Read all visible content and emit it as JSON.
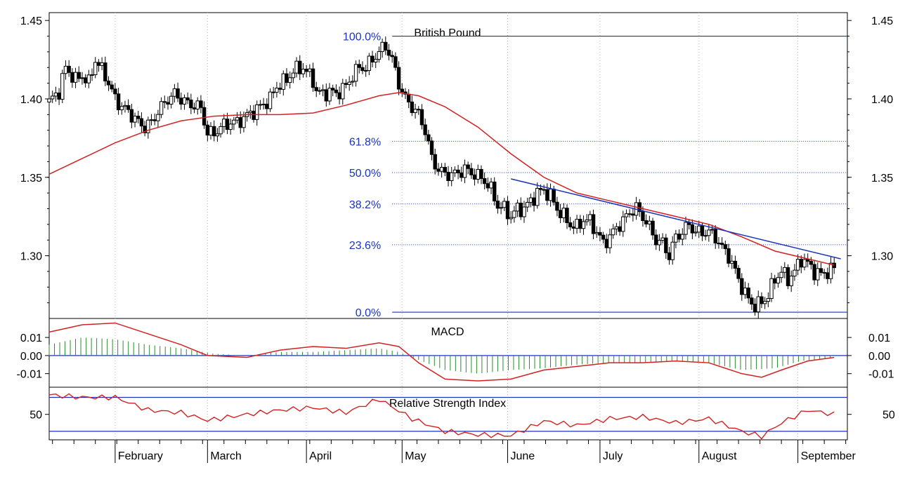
{
  "chart_data": [
    {
      "type": "candlestick",
      "title": "British Pound",
      "ylim": [
        1.26,
        1.455
      ],
      "y_ticks": [
        1.3,
        1.35,
        1.4,
        1.45
      ],
      "y_tick_labels": [
        "1.30",
        "1.35",
        "1.40",
        "1.45"
      ],
      "x_months": [
        "February",
        "March",
        "April",
        "May",
        "June",
        "July",
        "August",
        "September"
      ],
      "month_starts_day": [
        20,
        48,
        78,
        107,
        139,
        167,
        197,
        227
      ],
      "day_range": [
        0,
        242
      ],
      "close_by_day": [
        [
          0,
          1.398
        ],
        [
          3,
          1.405
        ],
        [
          5,
          1.42
        ],
        [
          8,
          1.412
        ],
        [
          10,
          1.415
        ],
        [
          12,
          1.41
        ],
        [
          14,
          1.425
        ],
        [
          17,
          1.415
        ],
        [
          20,
          1.4
        ],
        [
          22,
          1.395
        ],
        [
          24,
          1.392
        ],
        [
          27,
          1.385
        ],
        [
          29,
          1.382
        ],
        [
          31,
          1.385
        ],
        [
          33,
          1.392
        ],
        [
          36,
          1.4
        ],
        [
          38,
          1.403
        ],
        [
          40,
          1.4
        ],
        [
          42,
          1.397
        ],
        [
          44,
          1.396
        ],
        [
          46,
          1.394
        ],
        [
          48,
          1.378
        ],
        [
          50,
          1.378
        ],
        [
          52,
          1.382
        ],
        [
          55,
          1.385
        ],
        [
          57,
          1.385
        ],
        [
          59,
          1.388
        ],
        [
          62,
          1.392
        ],
        [
          64,
          1.395
        ],
        [
          67,
          1.4
        ],
        [
          69,
          1.408
        ],
        [
          72,
          1.412
        ],
        [
          74,
          1.418
        ],
        [
          77,
          1.42
        ],
        [
          80,
          1.412
        ],
        [
          81,
          1.405
        ],
        [
          83,
          1.403
        ],
        [
          85,
          1.405
        ],
        [
          87,
          1.403
        ],
        [
          88,
          1.405
        ],
        [
          90,
          1.408
        ],
        [
          92,
          1.415
        ],
        [
          94,
          1.42
        ],
        [
          96,
          1.42
        ],
        [
          98,
          1.425
        ],
        [
          100,
          1.43
        ],
        [
          102,
          1.434
        ],
        [
          104,
          1.425
        ],
        [
          106,
          1.41
        ],
        [
          108,
          1.4
        ],
        [
          110,
          1.395
        ],
        [
          112,
          1.39
        ],
        [
          114,
          1.38
        ],
        [
          116,
          1.362
        ],
        [
          118,
          1.355
        ],
        [
          120,
          1.352
        ],
        [
          123,
          1.352
        ],
        [
          126,
          1.355
        ],
        [
          129,
          1.352
        ],
        [
          132,
          1.348
        ],
        [
          134,
          1.342
        ],
        [
          136,
          1.332
        ],
        [
          138,
          1.33
        ],
        [
          140,
          1.325
        ],
        [
          142,
          1.33
        ],
        [
          144,
          1.33
        ],
        [
          146,
          1.335
        ],
        [
          148,
          1.34
        ],
        [
          150,
          1.342
        ],
        [
          152,
          1.338
        ],
        [
          154,
          1.33
        ],
        [
          156,
          1.325
        ],
        [
          158,
          1.32
        ],
        [
          160,
          1.318
        ],
        [
          162,
          1.323
        ],
        [
          164,
          1.322
        ],
        [
          166,
          1.315
        ],
        [
          168,
          1.308
        ],
        [
          170,
          1.312
        ],
        [
          172,
          1.318
        ],
        [
          174,
          1.322
        ],
        [
          176,
          1.328
        ],
        [
          178,
          1.33
        ],
        [
          180,
          1.325
        ],
        [
          182,
          1.318
        ],
        [
          184,
          1.31
        ],
        [
          186,
          1.308
        ],
        [
          188,
          1.3
        ],
        [
          190,
          1.312
        ],
        [
          192,
          1.315
        ],
        [
          194,
          1.32
        ],
        [
          196,
          1.315
        ],
        [
          198,
          1.315
        ],
        [
          200,
          1.315
        ],
        [
          202,
          1.312
        ],
        [
          204,
          1.305
        ],
        [
          206,
          1.3
        ],
        [
          208,
          1.29
        ],
        [
          210,
          1.28
        ],
        [
          212,
          1.272
        ],
        [
          214,
          1.268
        ],
        [
          216,
          1.27
        ],
        [
          218,
          1.275
        ],
        [
          220,
          1.285
        ],
        [
          222,
          1.29
        ],
        [
          224,
          1.285
        ],
        [
          226,
          1.29
        ],
        [
          228,
          1.298
        ],
        [
          230,
          1.295
        ],
        [
          232,
          1.29
        ],
        [
          234,
          1.288
        ],
        [
          236,
          1.29
        ],
        [
          238,
          1.292
        ]
      ],
      "moving_average": [
        [
          0,
          1.352
        ],
        [
          10,
          1.362
        ],
        [
          20,
          1.372
        ],
        [
          30,
          1.38
        ],
        [
          40,
          1.386
        ],
        [
          50,
          1.389
        ],
        [
          60,
          1.39
        ],
        [
          70,
          1.39
        ],
        [
          80,
          1.391
        ],
        [
          90,
          1.396
        ],
        [
          100,
          1.402
        ],
        [
          106,
          1.404
        ],
        [
          112,
          1.402
        ],
        [
          120,
          1.395
        ],
        [
          130,
          1.382
        ],
        [
          140,
          1.365
        ],
        [
          150,
          1.35
        ],
        [
          160,
          1.34
        ],
        [
          170,
          1.335
        ],
        [
          180,
          1.33
        ],
        [
          190,
          1.325
        ],
        [
          200,
          1.32
        ],
        [
          210,
          1.312
        ],
        [
          220,
          1.303
        ],
        [
          230,
          1.298
        ],
        [
          238,
          1.294
        ]
      ],
      "fibonacci_levels": [
        {
          "label": "100.0%",
          "value": 1.44
        },
        {
          "label": "61.8%",
          "value": 1.373
        },
        {
          "label": "50.0%",
          "value": 1.353
        },
        {
          "label": "38.2%",
          "value": 1.333
        },
        {
          "label": "23.6%",
          "value": 1.307
        },
        {
          "label": "0.0%",
          "value": 1.264
        }
      ],
      "fibonacci_start_day": 104,
      "trendline": [
        [
          140,
          1.349
        ],
        [
          240,
          1.298
        ]
      ]
    },
    {
      "type": "bar",
      "title": "MACD",
      "ylim": [
        -0.0175,
        0.0205
      ],
      "y_ticks": [
        0.01,
        0.0,
        -0.01
      ],
      "y_tick_labels": [
        "0.01",
        "0.00",
        "-0.01"
      ],
      "histogram": [
        [
          0,
          0.006
        ],
        [
          10,
          0.01
        ],
        [
          20,
          0.009
        ],
        [
          30,
          0.006
        ],
        [
          40,
          0.004
        ],
        [
          50,
          0.001
        ],
        [
          60,
          0.0
        ],
        [
          70,
          0.002
        ],
        [
          80,
          0.002
        ],
        [
          90,
          0.003
        ],
        [
          100,
          0.004
        ],
        [
          106,
          0.002
        ],
        [
          110,
          -0.001
        ],
        [
          120,
          -0.008
        ],
        [
          130,
          -0.01
        ],
        [
          140,
          -0.008
        ],
        [
          150,
          -0.007
        ],
        [
          160,
          -0.005
        ],
        [
          170,
          -0.004
        ],
        [
          180,
          -0.004
        ],
        [
          190,
          -0.003
        ],
        [
          200,
          -0.004
        ],
        [
          210,
          -0.008
        ],
        [
          220,
          -0.007
        ],
        [
          228,
          -0.003
        ],
        [
          238,
          -0.001
        ]
      ],
      "line": [
        [
          0,
          0.013
        ],
        [
          10,
          0.017
        ],
        [
          20,
          0.018
        ],
        [
          30,
          0.012
        ],
        [
          40,
          0.006
        ],
        [
          48,
          0.0
        ],
        [
          60,
          -0.001
        ],
        [
          70,
          0.003
        ],
        [
          80,
          0.005
        ],
        [
          90,
          0.004
        ],
        [
          100,
          0.007
        ],
        [
          106,
          0.005
        ],
        [
          112,
          -0.004
        ],
        [
          120,
          -0.013
        ],
        [
          130,
          -0.014
        ],
        [
          140,
          -0.013
        ],
        [
          150,
          -0.008
        ],
        [
          160,
          -0.006
        ],
        [
          170,
          -0.004
        ],
        [
          180,
          -0.004
        ],
        [
          190,
          -0.003
        ],
        [
          200,
          -0.004
        ],
        [
          210,
          -0.01
        ],
        [
          216,
          -0.012
        ],
        [
          222,
          -0.008
        ],
        [
          230,
          -0.003
        ],
        [
          238,
          -0.001
        ]
      ]
    },
    {
      "type": "line",
      "title": "Relative Strength Index",
      "ylim": [
        20,
        82
      ],
      "y_ticks": [
        50
      ],
      "y_tick_labels": [
        "50"
      ],
      "reference_lines": [
        70,
        30
      ],
      "values": [
        [
          0,
          73
        ],
        [
          10,
          70
        ],
        [
          20,
          70
        ],
        [
          30,
          55
        ],
        [
          40,
          52
        ],
        [
          48,
          43
        ],
        [
          60,
          50
        ],
        [
          70,
          55
        ],
        [
          80,
          58
        ],
        [
          90,
          52
        ],
        [
          100,
          68
        ],
        [
          110,
          45
        ],
        [
          120,
          30
        ],
        [
          130,
          26
        ],
        [
          140,
          25
        ],
        [
          150,
          42
        ],
        [
          160,
          37
        ],
        [
          170,
          45
        ],
        [
          180,
          47
        ],
        [
          190,
          40
        ],
        [
          200,
          45
        ],
        [
          210,
          30
        ],
        [
          216,
          24
        ],
        [
          222,
          40
        ],
        [
          230,
          55
        ],
        [
          238,
          50
        ]
      ]
    }
  ]
}
